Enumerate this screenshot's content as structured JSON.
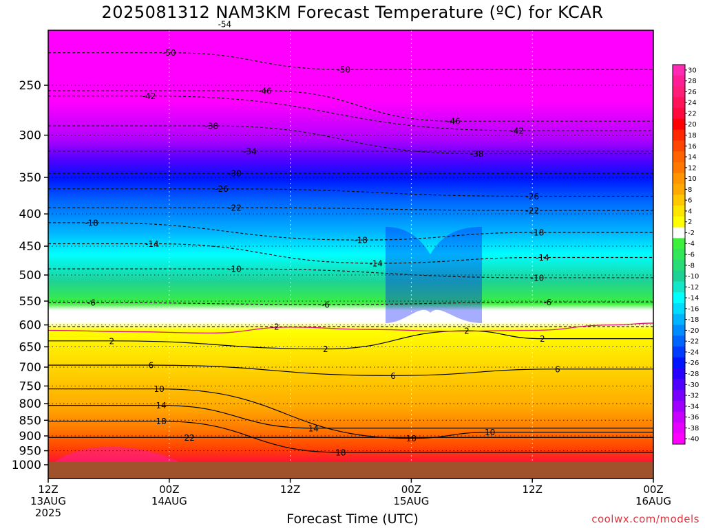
{
  "chart_data": {
    "type": "heatmap",
    "title": "2025081312 NAM3KM Forecast Temperature (ºC) for KCAR",
    "xlabel": "Forecast Time (UTC)",
    "ylabel": "",
    "source": "coolwx.com/models",
    "x_ticks": [
      {
        "hour": 0,
        "lines": [
          "12Z",
          "13AUG",
          "2025"
        ]
      },
      {
        "hour": 12,
        "lines": [
          "00Z",
          "14AUG"
        ]
      },
      {
        "hour": 24,
        "lines": [
          "12Z"
        ]
      },
      {
        "hour": 36,
        "lines": [
          "00Z",
          "15AUG"
        ]
      },
      {
        "hour": 48,
        "lines": [
          "12Z"
        ]
      },
      {
        "hour": 60,
        "lines": [
          "00Z",
          "16AUG"
        ]
      }
    ],
    "xlim_hours": [
      0,
      60
    ],
    "y_ticks": [
      250,
      300,
      350,
      400,
      450,
      500,
      550,
      600,
      650,
      700,
      750,
      800,
      850,
      900,
      950,
      1000
    ],
    "ylim_hpa": [
      200,
      1030
    ],
    "y_scale": "log-pressure",
    "grid": true,
    "colorbar_levels": [
      30,
      28,
      26,
      24,
      22,
      20,
      18,
      16,
      14,
      12,
      10,
      8,
      6,
      4,
      2,
      -2,
      -4,
      -6,
      -8,
      -10,
      -12,
      -14,
      -16,
      -18,
      -20,
      -22,
      -24,
      -26,
      -28,
      -30,
      -32,
      -34,
      -36,
      -38,
      -40
    ],
    "colorbar_colors": [
      "#ff2ab4",
      "#ff1e96",
      "#ff1e78",
      "#ff145a",
      "#ff0a3c",
      "#ff0000",
      "#ff2800",
      "#ff4600",
      "#ff6400",
      "#ff7800",
      "#ff9600",
      "#ffaa00",
      "#ffc800",
      "#ffe600",
      "#ffff00",
      "#ffffff",
      "#3cf03c",
      "#32e65a",
      "#28dc78",
      "#1ed296",
      "#14e6c8",
      "#00ffff",
      "#00dcff",
      "#00b4ff",
      "#008cff",
      "#0064ff",
      "#003cff",
      "#0014ff",
      "#2800ff",
      "#5000ff",
      "#7800ff",
      "#a000ff",
      "#c800ff",
      "#e600ff",
      "#ff00ff"
    ],
    "contour_labels": [
      {
        "value": "-54",
        "hour": 17.5,
        "p": 200
      },
      {
        "value": "-50",
        "hour": 12.0,
        "p": 222
      },
      {
        "value": "-50",
        "hour": 29.3,
        "p": 236
      },
      {
        "value": "-46",
        "hour": 21.5,
        "p": 255
      },
      {
        "value": "-42",
        "hour": 10.0,
        "p": 260
      },
      {
        "value": "-46",
        "hour": 40.2,
        "p": 285
      },
      {
        "value": "-42",
        "hour": 46.5,
        "p": 295
      },
      {
        "value": "-38",
        "hour": 16.2,
        "p": 290
      },
      {
        "value": "-38",
        "hour": 42.5,
        "p": 321
      },
      {
        "value": "-34",
        "hour": 20.0,
        "p": 318
      },
      {
        "value": "-30",
        "hour": 18.5,
        "p": 345
      },
      {
        "value": "-26",
        "hour": 17.2,
        "p": 365
      },
      {
        "value": "-26",
        "hour": 48.0,
        "p": 375
      },
      {
        "value": "-22",
        "hour": 18.5,
        "p": 391
      },
      {
        "value": "-22",
        "hour": 48.0,
        "p": 395
      },
      {
        "value": "-18",
        "hour": 4.3,
        "p": 413
      },
      {
        "value": "-18",
        "hour": 31.0,
        "p": 440
      },
      {
        "value": "-18",
        "hour": 48.5,
        "p": 428
      },
      {
        "value": "-14",
        "hour": 10.3,
        "p": 446
      },
      {
        "value": "-14",
        "hour": 32.5,
        "p": 479
      },
      {
        "value": "-14",
        "hour": 49.0,
        "p": 469
      },
      {
        "value": "-10",
        "hour": 18.5,
        "p": 489
      },
      {
        "value": "-10",
        "hour": 48.5,
        "p": 505
      },
      {
        "value": "-6",
        "hour": 4.3,
        "p": 553
      },
      {
        "value": "-6",
        "hour": 27.5,
        "p": 557
      },
      {
        "value": "-6",
        "hour": 49.5,
        "p": 552
      },
      {
        "value": "-2",
        "hour": 22.5,
        "p": 604
      },
      {
        "value": "2",
        "hour": 41.5,
        "p": 613
      },
      {
        "value": "2",
        "hour": 6.3,
        "p": 636
      },
      {
        "value": "2",
        "hour": 27.5,
        "p": 655
      },
      {
        "value": "2",
        "hour": 49.0,
        "p": 631
      },
      {
        "value": "6",
        "hour": 10.2,
        "p": 695
      },
      {
        "value": "6",
        "hour": 34.2,
        "p": 722
      },
      {
        "value": "6",
        "hour": 50.5,
        "p": 705
      },
      {
        "value": "10",
        "hour": 11.0,
        "p": 758
      },
      {
        "value": "10",
        "hour": 36.0,
        "p": 908
      },
      {
        "value": "10",
        "hour": 43.8,
        "p": 888
      },
      {
        "value": "14",
        "hour": 11.2,
        "p": 805
      },
      {
        "value": "14",
        "hour": 26.3,
        "p": 875
      },
      {
        "value": "18",
        "hour": 11.2,
        "p": 853
      },
      {
        "value": "18",
        "hour": 29.0,
        "p": 956
      },
      {
        "value": "22",
        "hour": 14.0,
        "p": 905
      }
    ]
  }
}
